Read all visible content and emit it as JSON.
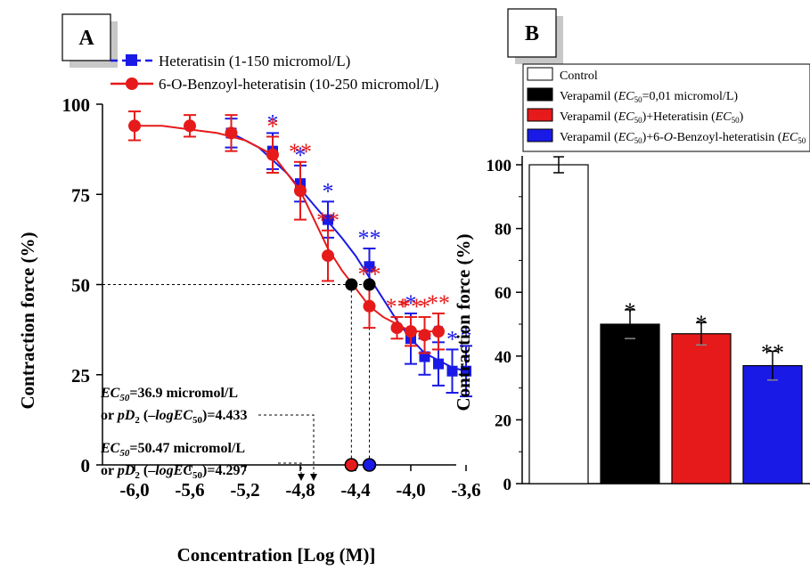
{
  "chart_data": [
    {
      "type": "line",
      "panel_label": "A",
      "xlabel": "Concentration [Log (M)]",
      "ylabel": "Contraction force (%)",
      "xlim": [
        -6.2,
        -3.55
      ],
      "ylim": [
        0,
        100
      ],
      "x_ticks": [
        -6.0,
        -5.6,
        -5.2,
        -4.8,
        -4.4,
        -4.0,
        -3.6
      ],
      "x_tick_labels": [
        "-6,0",
        "-5,6",
        "-5,2",
        "-4,8",
        "-4,4",
        "-4,0",
        "-3,6"
      ],
      "y_ticks": [
        0,
        25,
        50,
        75,
        100
      ],
      "y_tick_labels": [
        "0",
        "25",
        "50",
        "75",
        "100"
      ],
      "legend_position": "top",
      "series": [
        {
          "name": "Heteratisin (1-150 micromol/L)",
          "color": "#1a1ae6",
          "marker": "square",
          "line_style": "dashed-legend",
          "x": [
            -5.3,
            -5.0,
            -4.8,
            -4.6,
            -4.3,
            -4.0,
            -3.9,
            -3.8,
            -3.7,
            -3.6
          ],
          "y": [
            92,
            87,
            78,
            68,
            55,
            35,
            30,
            28,
            26,
            26
          ],
          "err": [
            4,
            5,
            5,
            5,
            5,
            7,
            5,
            6,
            6,
            7
          ],
          "sig": [
            "",
            "*",
            "*",
            "*",
            "**",
            "*",
            "",
            "*",
            "*",
            "*"
          ],
          "fit_x": [
            -5.3,
            -5.1,
            -4.9,
            -4.7,
            -4.5,
            -4.4,
            -4.3,
            -4.2,
            -4.1,
            -4.0,
            -3.9,
            -3.8,
            -3.7,
            -3.6
          ],
          "fit_y": [
            92,
            88,
            81,
            72,
            63,
            58,
            52,
            46,
            40,
            35,
            31,
            29,
            27,
            26
          ]
        },
        {
          "name": "6-O-Benzoyl-heteratisin (10-250 micromol/L)",
          "color": "#e61a1a",
          "marker": "circle",
          "line_style": "solid",
          "x": [
            -6.0,
            -5.6,
            -5.3,
            -5.0,
            -4.8,
            -4.6,
            -4.3,
            -4.1,
            -4.0,
            -3.9,
            -3.8
          ],
          "y": [
            94,
            94,
            92,
            86,
            76,
            58,
            44,
            38,
            37,
            36,
            37
          ],
          "err": [
            4,
            3,
            5,
            5,
            8,
            7,
            6,
            3,
            4,
            5,
            5
          ],
          "sig": [
            "",
            "",
            "",
            "*",
            "**",
            "**",
            "**",
            "**",
            "**",
            "*",
            "**"
          ],
          "fit_x": [
            -6.0,
            -5.8,
            -5.6,
            -5.4,
            -5.2,
            -5.0,
            -4.8,
            -4.6,
            -4.5,
            -4.4,
            -4.3,
            -4.2,
            -4.1,
            -4.0,
            -3.9,
            -3.8
          ],
          "fit_y": [
            94,
            94,
            93,
            92,
            90,
            86,
            76,
            60,
            54,
            49,
            44,
            41,
            39,
            37,
            37,
            37
          ]
        }
      ],
      "annotations": {
        "ec1_value": "=36.9 micromol/L",
        "ec1_line2_pre": "or ",
        "ec1_line2_post": "=4.433",
        "ec2_value": "=50.47 micromol/L",
        "ec2_line2_pre": "or ",
        "ec2_line2_post": "=4.297",
        "ec_label": "EC",
        "ec_sub": "50",
        "pd_label": "pD",
        "pd_sub": "2",
        "neglog_open": " (–",
        "neglog_text": "logEC",
        "neglog_close": ")",
        "ec50_markers": [
          {
            "x": -4.43,
            "y": 50
          },
          {
            "x": -4.3,
            "y": 50
          }
        ]
      },
      "colors": {
        "blue": "#1a1ae6",
        "red": "#e61a1a",
        "black": "#000000"
      }
    },
    {
      "type": "bar",
      "panel_label": "B",
      "ylabel": "Contraction force (%)",
      "ylim": [
        0,
        100
      ],
      "y_ticks": [
        0,
        20,
        40,
        60,
        80,
        100
      ],
      "y_tick_labels": [
        "0",
        "20",
        "40",
        "60",
        "80",
        "100"
      ],
      "categories": [
        "Control",
        "Verapamil",
        "Verapamil+Heteratisin",
        "Verapamil+6-O-Benzoyl-heteratisin"
      ],
      "values": [
        100,
        50,
        47,
        37
      ],
      "err": [
        2.5,
        4.5,
        3.5,
        4.5
      ],
      "sig": [
        "",
        "*",
        "*",
        "**"
      ],
      "bar_colors": [
        "#ffffff",
        "#000000",
        "#e61a1a",
        "#1a1ae6"
      ],
      "legend_position": "top",
      "legend": {
        "item1": "Control",
        "item2_pre": "Verapamil (",
        "item2_post": "=0,01 micromol/L)",
        "item3_pre": "Verapamil (",
        "item3_mid": ")+Heteratisin (",
        "item3_post": ")",
        "item4_pre": "Verapamil (",
        "item4_mid": ")+6-",
        "item4_o": "O",
        "item4_mid2": "-Benzoyl-heteratisin (",
        "ec": "EC",
        "sub": "50"
      }
    }
  ]
}
